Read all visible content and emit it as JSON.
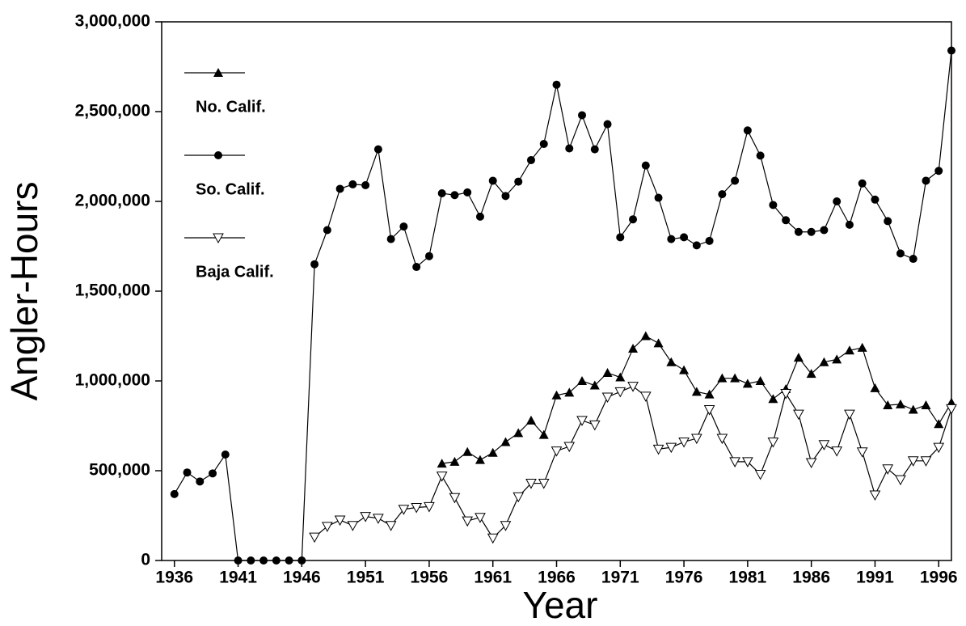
{
  "chart_data": {
    "type": "line",
    "y_label": "Angler-Hours",
    "x_label": "Year",
    "x": [
      1936,
      1937,
      1938,
      1939,
      1940,
      1941,
      1942,
      1943,
      1944,
      1945,
      1946,
      1947,
      1948,
      1949,
      1950,
      1951,
      1952,
      1953,
      1954,
      1955,
      1956,
      1957,
      1958,
      1959,
      1960,
      1961,
      1962,
      1963,
      1964,
      1965,
      1966,
      1967,
      1968,
      1969,
      1970,
      1971,
      1972,
      1973,
      1974,
      1975,
      1976,
      1977,
      1978,
      1979,
      1980,
      1981,
      1982,
      1983,
      1984,
      1985,
      1986,
      1987,
      1988,
      1989,
      1990,
      1991,
      1992,
      1993,
      1994,
      1995,
      1996,
      1997
    ],
    "series": [
      {
        "name": "No. Calif.",
        "color": "#000000",
        "marker": "triangle",
        "values": [
          null,
          null,
          null,
          null,
          null,
          null,
          null,
          null,
          null,
          null,
          null,
          null,
          null,
          null,
          null,
          null,
          null,
          null,
          null,
          null,
          null,
          540000,
          550000,
          605000,
          560000,
          600000,
          660000,
          710000,
          780000,
          700000,
          920000,
          935000,
          1000000,
          975000,
          1045000,
          1020000,
          1180000,
          1250000,
          1210000,
          1105000,
          1060000,
          940000,
          925000,
          1015000,
          1015000,
          985000,
          1000000,
          900000,
          955000,
          1130000,
          1040000,
          1105000,
          1120000,
          1170000,
          1185000,
          960000,
          865000,
          870000,
          840000,
          865000,
          760000,
          880000
        ]
      },
      {
        "name": "So. Calif.",
        "color": "#000000",
        "marker": "circle",
        "values": [
          370000,
          490000,
          440000,
          485000,
          590000,
          0,
          0,
          0,
          0,
          0,
          0,
          1650000,
          1840000,
          2070000,
          2095000,
          2090000,
          2290000,
          1790000,
          1860000,
          1635000,
          1695000,
          2045000,
          2035000,
          2050000,
          1915000,
          2115000,
          2030000,
          2110000,
          2230000,
          2320000,
          2650000,
          2295000,
          2480000,
          2290000,
          2430000,
          1800000,
          1900000,
          2200000,
          2020000,
          1790000,
          1800000,
          1755000,
          1780000,
          2040000,
          2115000,
          2395000,
          2255000,
          1980000,
          1895000,
          1830000,
          1830000,
          1840000,
          2000000,
          1870000,
          2100000,
          2010000,
          1890000,
          1710000,
          1680000,
          2115000,
          2170000,
          2840000
        ]
      },
      {
        "name": "Baja Calif.",
        "color": "#000000",
        "marker": "open-down-triangle",
        "values": [
          null,
          null,
          null,
          null,
          null,
          null,
          null,
          null,
          null,
          null,
          null,
          130000,
          190000,
          225000,
          195000,
          245000,
          235000,
          195000,
          285000,
          295000,
          300000,
          470000,
          350000,
          220000,
          240000,
          125000,
          195000,
          355000,
          430000,
          430000,
          610000,
          635000,
          780000,
          755000,
          910000,
          940000,
          970000,
          915000,
          620000,
          630000,
          660000,
          680000,
          840000,
          680000,
          550000,
          550000,
          480000,
          660000,
          930000,
          815000,
          545000,
          645000,
          610000,
          815000,
          605000,
          365000,
          510000,
          450000,
          555000,
          555000,
          630000,
          845000
        ]
      }
    ],
    "xlim": [
      1935,
      1997
    ],
    "xticks": [
      1936,
      1941,
      1946,
      1951,
      1956,
      1961,
      1966,
      1971,
      1976,
      1981,
      1986,
      1991,
      1996
    ],
    "ylim": [
      0,
      3000000
    ],
    "yticks": [
      0,
      {
        "value": 500000,
        "label": "500,000"
      },
      {
        "value": 1000000,
        "label": "1,000,000"
      },
      {
        "value": 1500000,
        "label": "1,500,000"
      },
      {
        "value": 2000000,
        "label": "2,000,000"
      },
      {
        "value": 2500000,
        "label": "2,500,000"
      },
      {
        "value": 3000000,
        "label": "3,000,000"
      }
    ],
    "legend": "upper left",
    "grid": false
  }
}
